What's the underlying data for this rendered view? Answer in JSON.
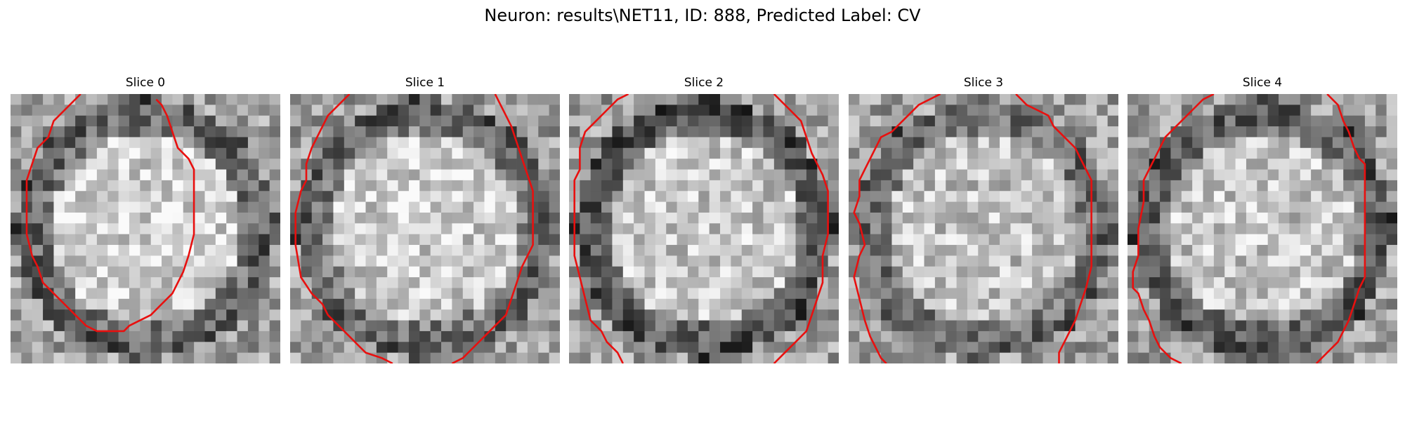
{
  "figure": {
    "suptitle": "Neuron: results\\NET11, ID: 888, Predicted Label: CV"
  },
  "panels": [
    {
      "title": "Slice 0",
      "seed": 11,
      "center_light": 0.82,
      "rim_dark": 0.3,
      "contour": [
        [
          6.5,
          0
        ],
        [
          5,
          1.5
        ],
        [
          4,
          2.5
        ],
        [
          3.5,
          4
        ],
        [
          2.5,
          5
        ],
        [
          2,
          6.5
        ],
        [
          1.5,
          8
        ],
        [
          1.5,
          13
        ],
        [
          2,
          15
        ],
        [
          2.5,
          16
        ],
        [
          3,
          17.5
        ],
        [
          4,
          18.5
        ],
        [
          5,
          19.5
        ],
        [
          6,
          20.5
        ],
        [
          7,
          21.5
        ],
        [
          8,
          22
        ],
        [
          10.5,
          22
        ],
        [
          11,
          21.5
        ],
        [
          12,
          21
        ],
        [
          13,
          20.5
        ],
        [
          14,
          19.5
        ],
        [
          15,
          18.5
        ],
        [
          15.5,
          17.5
        ],
        [
          16,
          16.5
        ],
        [
          16.5,
          15
        ],
        [
          17,
          13
        ],
        [
          17,
          10.5
        ],
        [
          17,
          7
        ],
        [
          16.5,
          6
        ],
        [
          15.5,
          5
        ],
        [
          15,
          3.5
        ],
        [
          14.5,
          2
        ],
        [
          14,
          1
        ],
        [
          13.5,
          0.5
        ]
      ]
    },
    {
      "title": "Slice 1",
      "seed": 23,
      "center_light": 0.8,
      "rim_dark": 0.32,
      "contour": [
        [
          5.5,
          0
        ],
        [
          4.5,
          1
        ],
        [
          3.5,
          2
        ],
        [
          3,
          3
        ],
        [
          2.5,
          4
        ],
        [
          2,
          5
        ],
        [
          1.5,
          6.5
        ],
        [
          1.5,
          8
        ],
        [
          1,
          9
        ],
        [
          0.5,
          11
        ],
        [
          0.5,
          14
        ],
        [
          1,
          17
        ],
        [
          2,
          18.5
        ],
        [
          3,
          19.5
        ],
        [
          3.5,
          20.5
        ],
        [
          4.5,
          21.5
        ],
        [
          5.5,
          22.5
        ],
        [
          6.5,
          23.5
        ],
        [
          7,
          24
        ],
        [
          8.5,
          24.5
        ],
        [
          9.5,
          25
        ]
      ],
      "contour2": [
        [
          15,
          25
        ],
        [
          16,
          24.5
        ],
        [
          17,
          23.5
        ],
        [
          18,
          22.5
        ],
        [
          19,
          21.5
        ],
        [
          20,
          20.5
        ],
        [
          20.5,
          19
        ],
        [
          21,
          17.5
        ],
        [
          21.5,
          16
        ],
        [
          22,
          15
        ],
        [
          22.5,
          14
        ],
        [
          22.5,
          9
        ],
        [
          22,
          7.5
        ],
        [
          21.5,
          6
        ],
        [
          21,
          4.5
        ],
        [
          20.5,
          3
        ],
        [
          20,
          2
        ],
        [
          19.5,
          1
        ],
        [
          19,
          0
        ]
      ]
    },
    {
      "title": "Slice 2",
      "seed": 37,
      "center_light": 0.78,
      "rim_dark": 0.25,
      "contour": [
        [
          5.5,
          0
        ],
        [
          4.5,
          0.5
        ],
        [
          3.5,
          1.5
        ],
        [
          2.5,
          2.5
        ],
        [
          1.5,
          3.5
        ],
        [
          1,
          5
        ],
        [
          1,
          7
        ],
        [
          0.5,
          8
        ],
        [
          0.5,
          11
        ],
        [
          0.5,
          15
        ],
        [
          1,
          17
        ],
        [
          1.5,
          19
        ],
        [
          2,
          21
        ],
        [
          3,
          22
        ],
        [
          3.5,
          23
        ],
        [
          4.5,
          24
        ],
        [
          5,
          25
        ]
      ],
      "contour2": [
        [
          19,
          25
        ],
        [
          20,
          24
        ],
        [
          21,
          23
        ],
        [
          22,
          22
        ],
        [
          22.5,
          20.5
        ],
        [
          23,
          19
        ],
        [
          23.5,
          17.5
        ],
        [
          23.5,
          15
        ],
        [
          24,
          13
        ],
        [
          24,
          9
        ],
        [
          23.5,
          7.5
        ],
        [
          23,
          6.5
        ],
        [
          22.5,
          5.5
        ],
        [
          22,
          4
        ],
        [
          21.5,
          2.5
        ],
        [
          20.5,
          1.5
        ],
        [
          19.5,
          0.5
        ],
        [
          19,
          0
        ]
      ]
    },
    {
      "title": "Slice 3",
      "seed": 51,
      "center_light": 0.76,
      "rim_dark": 0.33,
      "contour": [
        [
          8.5,
          0
        ],
        [
          7.5,
          0.5
        ],
        [
          6.5,
          1
        ],
        [
          5.5,
          2
        ],
        [
          4.5,
          3
        ],
        [
          4,
          3.5
        ],
        [
          3,
          4
        ],
        [
          2.5,
          5
        ],
        [
          2,
          6
        ],
        [
          1.5,
          7
        ],
        [
          1,
          8
        ],
        [
          1,
          9.5
        ],
        [
          0.5,
          11
        ],
        [
          1,
          12
        ],
        [
          1.5,
          14
        ],
        [
          1,
          15
        ],
        [
          0.5,
          17
        ],
        [
          1,
          19
        ],
        [
          1.5,
          21
        ],
        [
          2,
          22.5
        ],
        [
          2.5,
          23.5
        ],
        [
          3,
          24.5
        ],
        [
          3.5,
          25
        ]
      ],
      "contour2": [
        [
          19.5,
          25
        ],
        [
          19.5,
          24
        ],
        [
          20,
          23
        ],
        [
          20.5,
          22
        ],
        [
          21,
          21
        ],
        [
          21.5,
          19.5
        ],
        [
          22,
          18
        ],
        [
          22.5,
          16
        ],
        [
          22.5,
          8
        ],
        [
          22,
          7
        ],
        [
          21.5,
          6
        ],
        [
          21,
          5
        ],
        [
          20,
          4
        ],
        [
          19,
          3
        ],
        [
          18.5,
          2
        ],
        [
          17.5,
          1.5
        ],
        [
          16.5,
          1
        ],
        [
          16,
          0.5
        ],
        [
          15.5,
          0
        ]
      ]
    },
    {
      "title": "Slice 4",
      "seed": 67,
      "center_light": 0.77,
      "rim_dark": 0.28,
      "contour": [
        [
          8,
          0
        ],
        [
          7,
          0.5
        ],
        [
          6,
          1.5
        ],
        [
          5,
          2.5
        ],
        [
          4,
          3.5
        ],
        [
          3.5,
          4
        ],
        [
          3,
          5
        ],
        [
          2.5,
          6
        ],
        [
          2,
          7
        ],
        [
          1.5,
          8
        ],
        [
          1.5,
          10
        ],
        [
          1,
          12.5
        ],
        [
          1,
          15
        ],
        [
          0.5,
          16.5
        ],
        [
          0.5,
          18
        ],
        [
          1,
          18.5
        ],
        [
          1.5,
          20
        ],
        [
          2,
          21
        ],
        [
          2.5,
          22.5
        ],
        [
          3,
          23.5
        ],
        [
          4,
          24.5
        ],
        [
          5,
          25
        ]
      ],
      "contour2": [
        [
          17.5,
          25
        ],
        [
          18.5,
          24
        ],
        [
          19.5,
          23
        ],
        [
          20,
          22
        ],
        [
          20.5,
          21
        ],
        [
          21,
          19.5
        ],
        [
          21.5,
          18
        ],
        [
          22,
          17
        ],
        [
          22,
          10
        ],
        [
          22,
          6.5
        ],
        [
          21.5,
          6
        ],
        [
          21,
          5
        ],
        [
          20.5,
          3.5
        ],
        [
          20,
          2.5
        ],
        [
          19.5,
          1
        ],
        [
          19,
          0.5
        ],
        [
          18.5,
          0
        ]
      ]
    }
  ],
  "colors": {
    "contour": "#e8100f",
    "background": "#ffffff"
  }
}
